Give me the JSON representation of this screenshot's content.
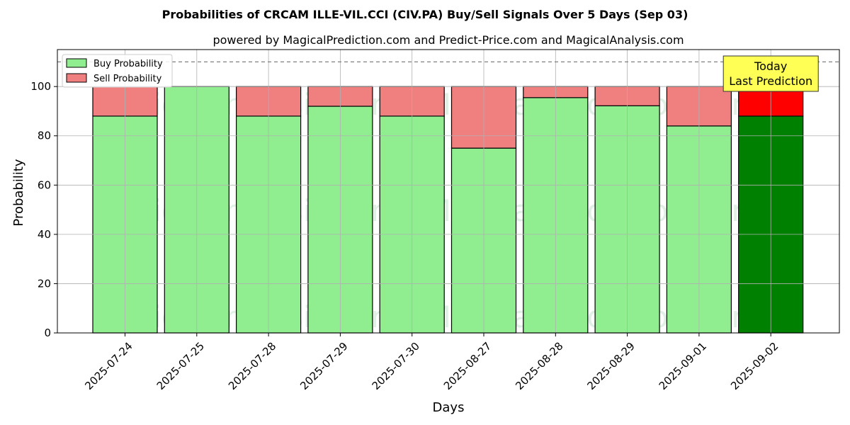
{
  "chart_data": {
    "type": "bar",
    "stacked": true,
    "title": "Probabilities of CRCAM ILLE-VIL.CCI (CIV.PA) Buy/Sell Signals Over 5 Days (Sep 03)",
    "subtitle": "powered by MagicalPrediction.com and Predict-Price.com and MagicalAnalysis.com",
    "xlabel": "Days",
    "ylabel": "Probability",
    "ylim": [
      0,
      115
    ],
    "yticks": [
      0,
      20,
      40,
      60,
      80,
      100
    ],
    "grid": true,
    "legend_position": "top-left",
    "reference_line": 110,
    "categories": [
      "2025-07-24",
      "2025-07-25",
      "2025-07-28",
      "2025-07-29",
      "2025-07-30",
      "2025-08-27",
      "2025-08-28",
      "2025-08-29",
      "2025-09-01",
      "2025-09-02"
    ],
    "series": [
      {
        "name": "Buy Probability",
        "values": [
          88,
          100,
          88,
          92,
          88,
          75,
          95.5,
          92.2,
          84,
          88
        ],
        "color": "#90ee90",
        "highlight_color": "#008000"
      },
      {
        "name": "Sell Probability",
        "values": [
          12,
          0,
          12,
          8,
          12,
          25,
          4.5,
          7.8,
          16,
          12
        ],
        "color": "#f08080",
        "highlight_color": "#ff0000"
      }
    ],
    "highlight_index": 9,
    "annotation": {
      "lines": [
        "Today",
        "Last Prediction"
      ],
      "background": "#ffff55"
    },
    "watermarks": [
      "MagicalAnalysis.com",
      "MagicalPrediction.com"
    ]
  }
}
